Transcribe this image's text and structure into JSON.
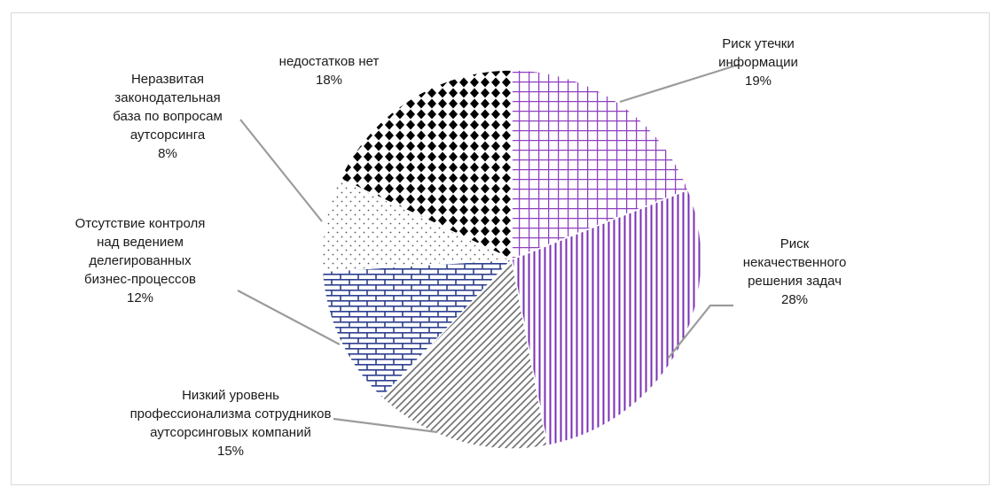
{
  "chart_data": {
    "type": "pie",
    "title": "",
    "slices": [
      {
        "label_lines": [
          "Риск утечки",
          "информации"
        ],
        "percent_label": "19%",
        "value": 19,
        "pattern": "grid",
        "color": "#8d3fbf"
      },
      {
        "label_lines": [
          "Риск",
          "некачественного",
          "решения задач"
        ],
        "percent_label": "28%",
        "value": 28,
        "pattern": "vlines",
        "color": "#7a2fb5"
      },
      {
        "label_lines": [
          "Низкий уровень",
          "профессионализма сотрудников",
          "аутсорсинговых компаний"
        ],
        "percent_label": "15%",
        "value": 15,
        "pattern": "diagonal",
        "color": "#6f6f6f"
      },
      {
        "label_lines": [
          "Отсутствие контроля",
          "над ведением",
          "делегированных",
          "бизнес-процессов"
        ],
        "percent_label": "12%",
        "value": 12,
        "pattern": "brick",
        "color": "#2e3f8f"
      },
      {
        "label_lines": [
          "Неразвитая",
          "законодательная",
          "база по вопросам",
          "аутсорсинга"
        ],
        "percent_label": "8%",
        "value": 8,
        "pattern": "dots",
        "color": "#555555"
      },
      {
        "label_lines": [
          "недостатков нет"
        ],
        "percent_label": "18%",
        "value": 18,
        "pattern": "diamonds",
        "color": "#000000"
      }
    ]
  }
}
